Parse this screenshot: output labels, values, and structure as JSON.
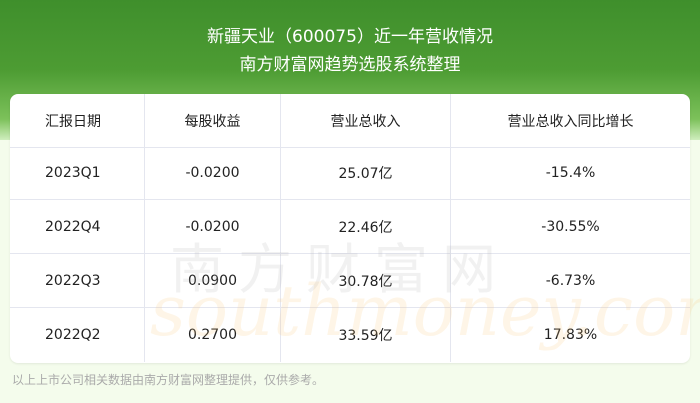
{
  "header": {
    "title": "新疆天业（600075）近一年营收情况",
    "subtitle": "南方财富网趋势选股系统整理"
  },
  "table": {
    "columns": [
      "汇报日期",
      "每股收益",
      "营业总收入",
      "营业总收入同比增长"
    ],
    "rows": [
      [
        "2023Q1",
        "-0.0200",
        "25.07亿",
        "-15.4%"
      ],
      [
        "2022Q4",
        "-0.0200",
        "22.46亿",
        "-30.55%"
      ],
      [
        "2022Q3",
        "0.0900",
        "30.78亿",
        "-6.73%"
      ],
      [
        "2022Q2",
        "0.2700",
        "33.59亿",
        "17.83%"
      ]
    ]
  },
  "watermark": {
    "cn": "南方财富网",
    "en": "southmoney.com"
  },
  "footer": "以上上市公司相关数据由南方财富网整理提供，仅供参考。"
}
